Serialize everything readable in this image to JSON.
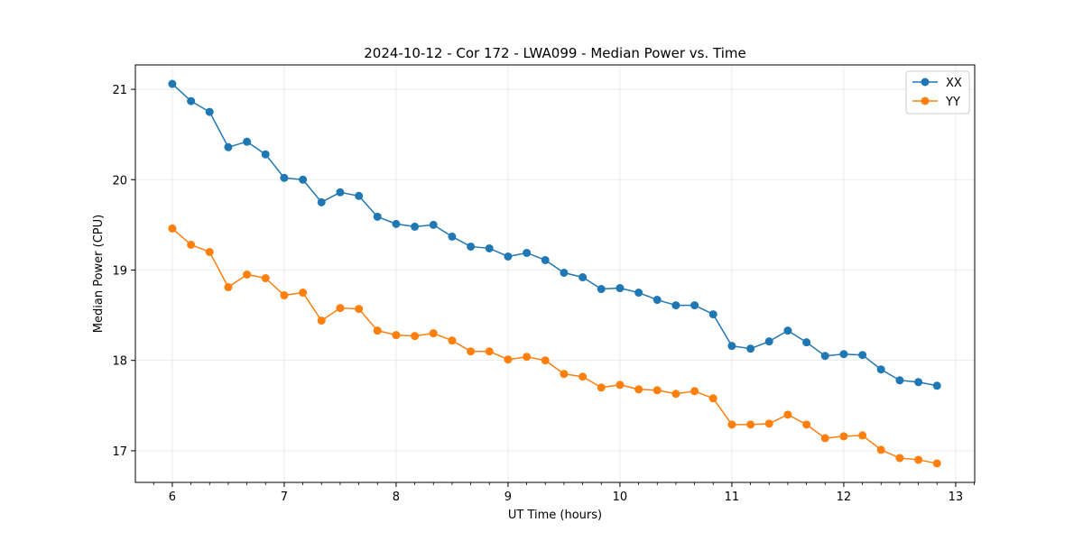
{
  "chart_data": {
    "type": "line",
    "title": "2024-10-12 - Cor 172 - LWA099 - Median Power vs. Time",
    "xlabel": "UT Time (hours)",
    "ylabel": "Median Power (CPU)",
    "xlim": [
      5.67,
      13.17
    ],
    "ylim": [
      16.65,
      21.27
    ],
    "xticks": [
      6,
      7,
      8,
      9,
      10,
      11,
      12,
      13
    ],
    "yticks": [
      17,
      18,
      19,
      20,
      21
    ],
    "grid": true,
    "legend_position": "top-right",
    "x": [
      6.0,
      6.167,
      6.333,
      6.5,
      6.667,
      6.833,
      7.0,
      7.167,
      7.333,
      7.5,
      7.667,
      7.833,
      8.0,
      8.167,
      8.333,
      8.5,
      8.667,
      8.833,
      9.0,
      9.167,
      9.333,
      9.5,
      9.667,
      9.833,
      10.0,
      10.167,
      10.333,
      10.5,
      10.667,
      10.833,
      11.0,
      11.167,
      11.333,
      11.5,
      11.667,
      11.833,
      12.0,
      12.167,
      12.333,
      12.5,
      12.667,
      12.833
    ],
    "series": [
      {
        "name": "XX",
        "color": "#1f77b4",
        "values": [
          21.06,
          20.87,
          20.75,
          20.36,
          20.42,
          20.28,
          20.02,
          20.0,
          19.75,
          19.86,
          19.82,
          19.59,
          19.51,
          19.48,
          19.5,
          19.37,
          19.26,
          19.24,
          19.15,
          19.19,
          19.11,
          18.97,
          18.92,
          18.79,
          18.8,
          18.75,
          18.67,
          18.61,
          18.61,
          18.51,
          18.16,
          18.13,
          18.21,
          18.33,
          18.2,
          18.05,
          18.07,
          18.06,
          17.9,
          17.78,
          17.76,
          17.72
        ]
      },
      {
        "name": "YY",
        "color": "#ff7f0e",
        "values": [
          19.46,
          19.28,
          19.2,
          18.81,
          18.95,
          18.91,
          18.72,
          18.75,
          18.44,
          18.58,
          18.57,
          18.33,
          18.28,
          18.27,
          18.3,
          18.22,
          18.1,
          18.1,
          18.01,
          18.04,
          18.0,
          17.85,
          17.82,
          17.7,
          17.73,
          17.68,
          17.67,
          17.63,
          17.66,
          17.58,
          17.29,
          17.29,
          17.3,
          17.4,
          17.29,
          17.14,
          17.16,
          17.17,
          17.01,
          16.92,
          16.9,
          16.86
        ]
      }
    ]
  }
}
